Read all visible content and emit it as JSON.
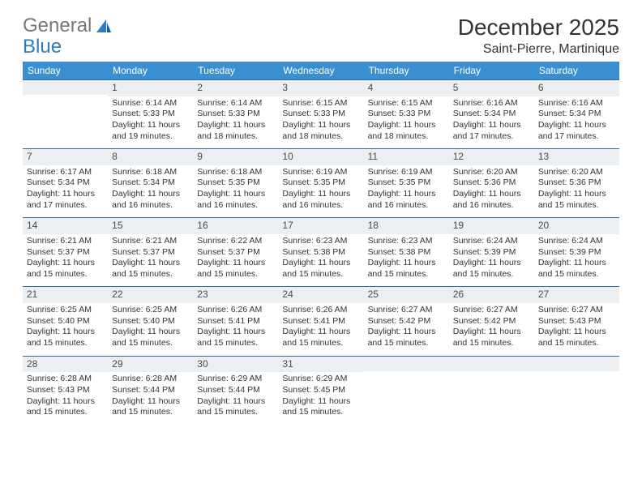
{
  "logo": {
    "text1": "General",
    "text2": "Blue"
  },
  "title": "December 2025",
  "subtitle": "Saint-Pierre, Martinique",
  "colors": {
    "header_bg": "#3a8fd0",
    "header_text": "#ffffff",
    "daynum_bg": "#eceff1",
    "border": "#2f6fa8",
    "text": "#333333",
    "logo_blue": "#2f7bbf"
  },
  "typography": {
    "title_fontsize": 28,
    "subtitle_fontsize": 16,
    "header_fontsize": 12,
    "cell_fontsize": 10.5
  },
  "weekdays": [
    "Sunday",
    "Monday",
    "Tuesday",
    "Wednesday",
    "Thursday",
    "Friday",
    "Saturday"
  ],
  "weeks": [
    [
      null,
      {
        "d": "1",
        "sr": "6:14 AM",
        "ss": "5:33 PM",
        "dl": "11 hours and 19 minutes."
      },
      {
        "d": "2",
        "sr": "6:14 AM",
        "ss": "5:33 PM",
        "dl": "11 hours and 18 minutes."
      },
      {
        "d": "3",
        "sr": "6:15 AM",
        "ss": "5:33 PM",
        "dl": "11 hours and 18 minutes."
      },
      {
        "d": "4",
        "sr": "6:15 AM",
        "ss": "5:33 PM",
        "dl": "11 hours and 18 minutes."
      },
      {
        "d": "5",
        "sr": "6:16 AM",
        "ss": "5:34 PM",
        "dl": "11 hours and 17 minutes."
      },
      {
        "d": "6",
        "sr": "6:16 AM",
        "ss": "5:34 PM",
        "dl": "11 hours and 17 minutes."
      }
    ],
    [
      {
        "d": "7",
        "sr": "6:17 AM",
        "ss": "5:34 PM",
        "dl": "11 hours and 17 minutes."
      },
      {
        "d": "8",
        "sr": "6:18 AM",
        "ss": "5:34 PM",
        "dl": "11 hours and 16 minutes."
      },
      {
        "d": "9",
        "sr": "6:18 AM",
        "ss": "5:35 PM",
        "dl": "11 hours and 16 minutes."
      },
      {
        "d": "10",
        "sr": "6:19 AM",
        "ss": "5:35 PM",
        "dl": "11 hours and 16 minutes."
      },
      {
        "d": "11",
        "sr": "6:19 AM",
        "ss": "5:35 PM",
        "dl": "11 hours and 16 minutes."
      },
      {
        "d": "12",
        "sr": "6:20 AM",
        "ss": "5:36 PM",
        "dl": "11 hours and 16 minutes."
      },
      {
        "d": "13",
        "sr": "6:20 AM",
        "ss": "5:36 PM",
        "dl": "11 hours and 15 minutes."
      }
    ],
    [
      {
        "d": "14",
        "sr": "6:21 AM",
        "ss": "5:37 PM",
        "dl": "11 hours and 15 minutes."
      },
      {
        "d": "15",
        "sr": "6:21 AM",
        "ss": "5:37 PM",
        "dl": "11 hours and 15 minutes."
      },
      {
        "d": "16",
        "sr": "6:22 AM",
        "ss": "5:37 PM",
        "dl": "11 hours and 15 minutes."
      },
      {
        "d": "17",
        "sr": "6:23 AM",
        "ss": "5:38 PM",
        "dl": "11 hours and 15 minutes."
      },
      {
        "d": "18",
        "sr": "6:23 AM",
        "ss": "5:38 PM",
        "dl": "11 hours and 15 minutes."
      },
      {
        "d": "19",
        "sr": "6:24 AM",
        "ss": "5:39 PM",
        "dl": "11 hours and 15 minutes."
      },
      {
        "d": "20",
        "sr": "6:24 AM",
        "ss": "5:39 PM",
        "dl": "11 hours and 15 minutes."
      }
    ],
    [
      {
        "d": "21",
        "sr": "6:25 AM",
        "ss": "5:40 PM",
        "dl": "11 hours and 15 minutes."
      },
      {
        "d": "22",
        "sr": "6:25 AM",
        "ss": "5:40 PM",
        "dl": "11 hours and 15 minutes."
      },
      {
        "d": "23",
        "sr": "6:26 AM",
        "ss": "5:41 PM",
        "dl": "11 hours and 15 minutes."
      },
      {
        "d": "24",
        "sr": "6:26 AM",
        "ss": "5:41 PM",
        "dl": "11 hours and 15 minutes."
      },
      {
        "d": "25",
        "sr": "6:27 AM",
        "ss": "5:42 PM",
        "dl": "11 hours and 15 minutes."
      },
      {
        "d": "26",
        "sr": "6:27 AM",
        "ss": "5:42 PM",
        "dl": "11 hours and 15 minutes."
      },
      {
        "d": "27",
        "sr": "6:27 AM",
        "ss": "5:43 PM",
        "dl": "11 hours and 15 minutes."
      }
    ],
    [
      {
        "d": "28",
        "sr": "6:28 AM",
        "ss": "5:43 PM",
        "dl": "11 hours and 15 minutes."
      },
      {
        "d": "29",
        "sr": "6:28 AM",
        "ss": "5:44 PM",
        "dl": "11 hours and 15 minutes."
      },
      {
        "d": "30",
        "sr": "6:29 AM",
        "ss": "5:44 PM",
        "dl": "11 hours and 15 minutes."
      },
      {
        "d": "31",
        "sr": "6:29 AM",
        "ss": "5:45 PM",
        "dl": "11 hours and 15 minutes."
      },
      null,
      null,
      null
    ]
  ],
  "labels": {
    "sunrise": "Sunrise:",
    "sunset": "Sunset:",
    "daylight": "Daylight:"
  }
}
